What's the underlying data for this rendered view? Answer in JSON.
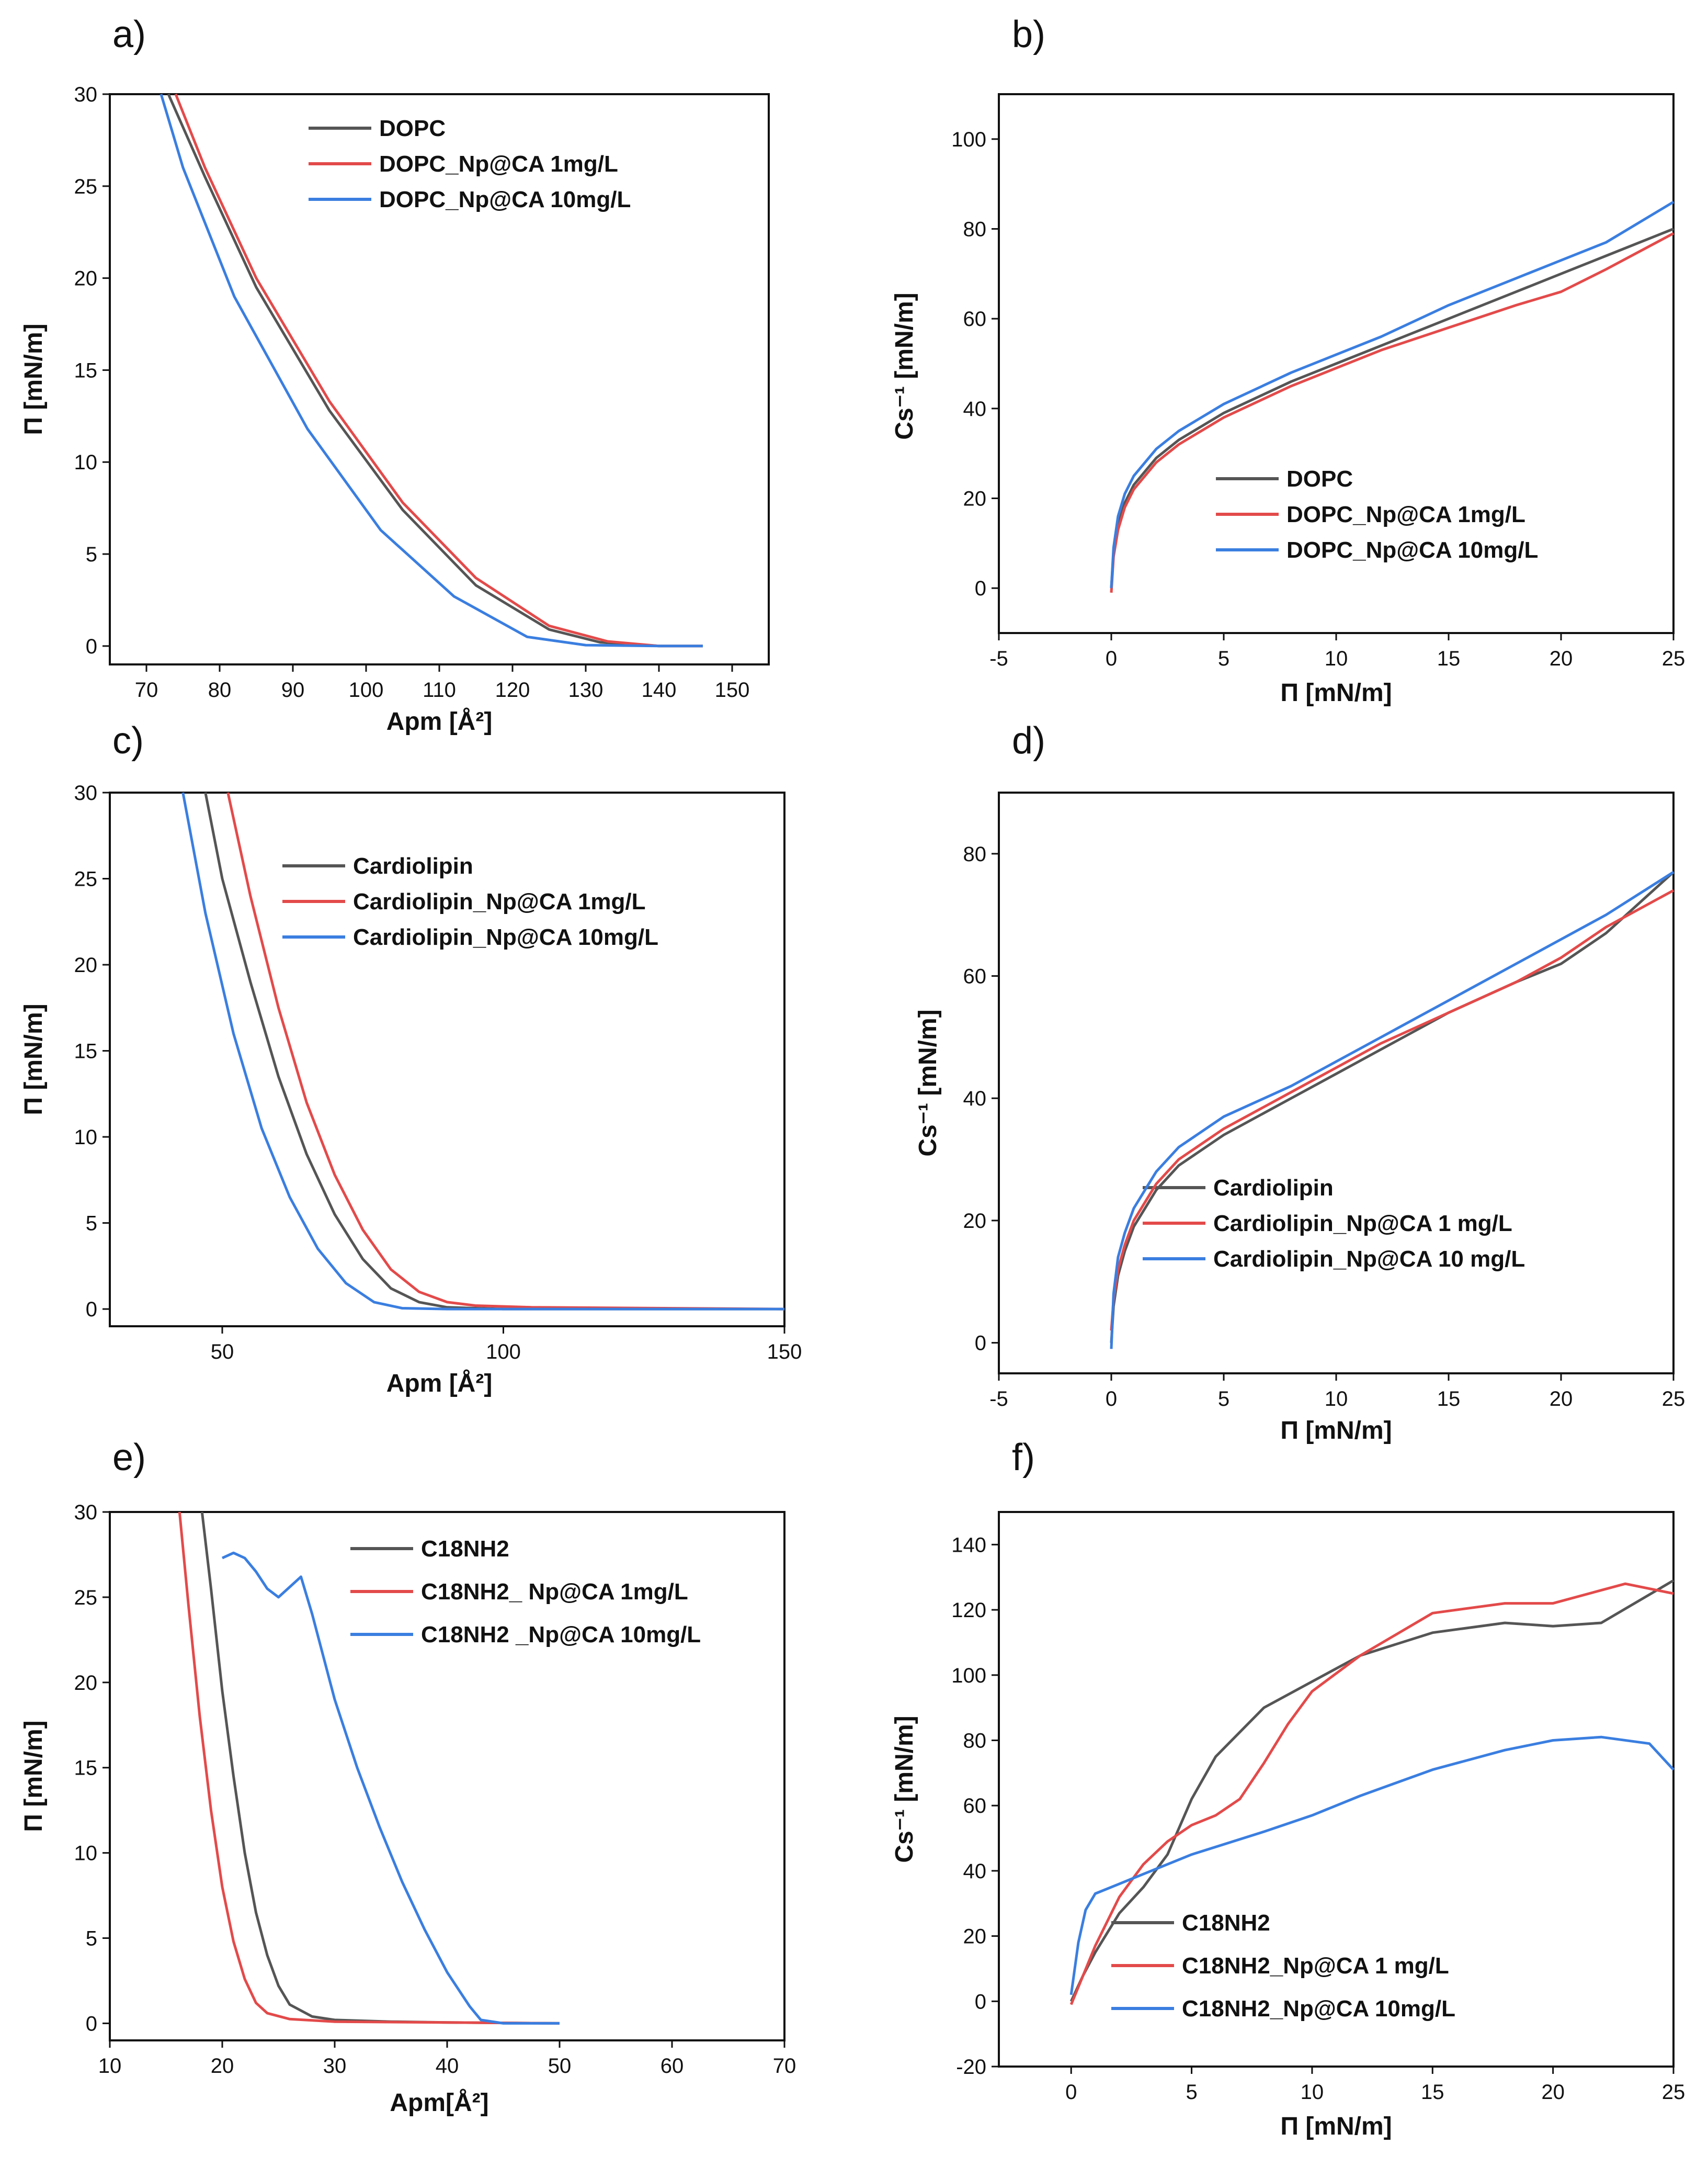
{
  "chart_data": [
    {
      "panel": "a)",
      "type": "line",
      "xlabel": "Apm [Å²]",
      "ylabel": "Π [mN/m]",
      "xlim": [
        65,
        155
      ],
      "ylim": [
        -1,
        30
      ],
      "xticks": [
        70,
        80,
        90,
        100,
        110,
        120,
        130,
        140,
        150
      ],
      "yticks": [
        0,
        5,
        10,
        15,
        20,
        25,
        30
      ],
      "legend_position": "top-center",
      "series": [
        {
          "name": "DOPC",
          "color": "#555555",
          "x": [
            73,
            78,
            85,
            95,
            105,
            115,
            125,
            132,
            140,
            146
          ],
          "y": [
            30,
            25.5,
            19.5,
            12.8,
            7.4,
            3.3,
            0.9,
            0.2,
            0.0,
            0.0
          ]
        },
        {
          "name": "DOPC_Np@CA 1mg/L",
          "color": "#e34a4a",
          "x": [
            74,
            78,
            85,
            95,
            105,
            115,
            125,
            133,
            140,
            146
          ],
          "y": [
            30,
            26.0,
            20.0,
            13.3,
            7.8,
            3.7,
            1.1,
            0.25,
            0.0,
            0.0
          ]
        },
        {
          "name": "DOPC_Np@CA 10mg/L",
          "color": "#3a7ee0",
          "x": [
            72,
            75,
            82,
            92,
            102,
            112,
            122,
            130,
            140,
            146
          ],
          "y": [
            30,
            26.0,
            19.0,
            11.8,
            6.3,
            2.7,
            0.5,
            0.05,
            0.0,
            0.0
          ]
        }
      ]
    },
    {
      "panel": "b)",
      "type": "line",
      "xlabel": "Π [mN/m]",
      "ylabel": "Cs⁻¹ [mN/m]",
      "xlim": [
        -5,
        25
      ],
      "ylim": [
        -10,
        110
      ],
      "xticks": [
        -5,
        0,
        5,
        10,
        15,
        20,
        25
      ],
      "yticks": [
        0,
        20,
        40,
        60,
        80,
        100
      ],
      "legend_position": "bottom-right",
      "series": [
        {
          "name": "DOPC",
          "color": "#555555",
          "x": [
            0,
            0.1,
            0.3,
            0.6,
            1,
            2,
            3,
            5,
            8,
            10,
            12,
            15,
            18,
            20,
            22,
            25
          ],
          "y": [
            0,
            8,
            14,
            19,
            23,
            29,
            33,
            39,
            46,
            50,
            54,
            60,
            66,
            70,
            74,
            80
          ]
        },
        {
          "name": "DOPC_Np@CA 1mg/L",
          "color": "#e34a4a",
          "x": [
            0,
            0.1,
            0.3,
            0.6,
            1,
            2,
            3,
            5,
            8,
            10,
            12,
            15,
            18,
            20,
            22,
            25
          ],
          "y": [
            -1,
            7,
            13,
            18,
            22,
            28,
            32,
            38,
            45,
            49,
            53,
            58,
            63,
            66,
            71,
            79
          ]
        },
        {
          "name": "DOPC_Np@CA 10mg/L",
          "color": "#3a7ee0",
          "x": [
            0,
            0.1,
            0.3,
            0.6,
            1,
            2,
            3,
            5,
            8,
            10,
            12,
            15,
            18,
            20,
            22,
            25
          ],
          "y": [
            0,
            9,
            16,
            21,
            25,
            31,
            35,
            41,
            48,
            52,
            56,
            63,
            69,
            73,
            77,
            86
          ]
        }
      ]
    },
    {
      "panel": "c)",
      "type": "line",
      "xlabel": "Apm [Å²]",
      "ylabel": "Π [mN/m]",
      "xlim": [
        30,
        150
      ],
      "ylim": [
        -1,
        30
      ],
      "xticks": [
        50,
        100,
        150
      ],
      "yticks": [
        0,
        5,
        10,
        15,
        20,
        25,
        30
      ],
      "legend_position": "top-center",
      "series": [
        {
          "name": "Cardiolipin",
          "color": "#555555",
          "x": [
            47,
            50,
            55,
            60,
            65,
            70,
            75,
            80,
            85,
            90,
            100,
            150
          ],
          "y": [
            30,
            25,
            19,
            13.5,
            9,
            5.5,
            2.9,
            1.2,
            0.4,
            0.1,
            0.0,
            0.0
          ]
        },
        {
          "name": "Cardiolipin_Np@CA 1mg/L",
          "color": "#e34a4a",
          "x": [
            51,
            55,
            60,
            65,
            70,
            75,
            80,
            85,
            90,
            95,
            105,
            150
          ],
          "y": [
            30,
            24,
            17.5,
            12,
            7.8,
            4.6,
            2.3,
            1.0,
            0.4,
            0.2,
            0.1,
            0.0
          ]
        },
        {
          "name": "Cardiolipin_Np@CA 10mg/L",
          "color": "#3a7ee0",
          "x": [
            43,
            47,
            52,
            57,
            62,
            67,
            72,
            77,
            82,
            90,
            150
          ],
          "y": [
            30,
            23,
            16,
            10.5,
            6.5,
            3.5,
            1.5,
            0.4,
            0.05,
            0.0,
            0.0
          ]
        }
      ]
    },
    {
      "panel": "d)",
      "type": "line",
      "xlabel": "Π [mN/m]",
      "ylabel": "Cs⁻¹ [mN/m]",
      "xlim": [
        -5,
        25
      ],
      "ylim": [
        -5,
        90
      ],
      "xticks": [
        -5,
        0,
        5,
        10,
        15,
        20,
        25
      ],
      "yticks": [
        0,
        20,
        40,
        60,
        80
      ],
      "legend_position": "bottom-right",
      "series": [
        {
          "name": "Cardiolipin",
          "color": "#555555",
          "x": [
            0,
            0.1,
            0.3,
            0.6,
            1,
            2,
            3,
            5,
            8,
            10,
            12,
            15,
            18,
            20,
            22,
            25
          ],
          "y": [
            0,
            6,
            11,
            15,
            19,
            25,
            29,
            34,
            40,
            44,
            48,
            54,
            59,
            62,
            67,
            77
          ]
        },
        {
          "name": "Cardiolipin_Np@CA 1 mg/L",
          "color": "#e34a4a",
          "x": [
            0,
            0.1,
            0.3,
            0.6,
            1,
            2,
            3,
            5,
            8,
            10,
            12,
            15,
            18,
            20,
            22,
            25
          ],
          "y": [
            2,
            7,
            12,
            16,
            20,
            26,
            30,
            35,
            41,
            45,
            49,
            54,
            59,
            63,
            68,
            74
          ]
        },
        {
          "name": "Cardiolipin_Np@CA 10 mg/L",
          "color": "#3a7ee0",
          "x": [
            0,
            0.1,
            0.3,
            0.6,
            1,
            2,
            3,
            5,
            8,
            10,
            12,
            15,
            18,
            20,
            22,
            25
          ],
          "y": [
            -1,
            8,
            14,
            18,
            22,
            28,
            32,
            37,
            42,
            46,
            50,
            56,
            62,
            66,
            70,
            77
          ]
        }
      ]
    },
    {
      "panel": "e)",
      "type": "line",
      "xlabel": "Apm[Å²]",
      "ylabel": "Π [mN/m]",
      "xlim": [
        10,
        70
      ],
      "ylim": [
        -1,
        30
      ],
      "xticks": [
        10,
        20,
        30,
        40,
        50,
        60,
        70
      ],
      "yticks": [
        0,
        5,
        10,
        15,
        20,
        25,
        30
      ],
      "legend_position": "top-center",
      "series": [
        {
          "name": "C18NH2",
          "color": "#555555",
          "x": [
            18.2,
            19,
            20,
            21,
            22,
            23,
            24,
            25,
            26,
            28,
            30,
            35,
            40,
            50
          ],
          "y": [
            30,
            25.5,
            19.5,
            14.5,
            10,
            6.5,
            4.0,
            2.2,
            1.1,
            0.4,
            0.2,
            0.1,
            0.05,
            0.0
          ]
        },
        {
          "name": "C18NH2_ Np@CA 1mg/L",
          "color": "#e34a4a",
          "x": [
            16.2,
            17,
            18,
            19,
            20,
            21,
            22,
            23,
            24,
            26,
            30,
            40,
            50
          ],
          "y": [
            30,
            24.5,
            18,
            12.5,
            8,
            4.8,
            2.6,
            1.2,
            0.6,
            0.25,
            0.1,
            0.05,
            0.0
          ]
        },
        {
          "name": "C18NH2 _Np@CA 10mg/L",
          "color": "#3a7ee0",
          "x": [
            20,
            21,
            22,
            23,
            24,
            25,
            26,
            27,
            28,
            30,
            32,
            34,
            36,
            38,
            40,
            42,
            43,
            45,
            50
          ],
          "y": [
            27.3,
            27.6,
            27.3,
            26.5,
            25.5,
            25.0,
            25.6,
            26.2,
            24.0,
            19.0,
            15.0,
            11.5,
            8.3,
            5.5,
            3.0,
            1.0,
            0.2,
            0.0,
            0.0
          ]
        }
      ]
    },
    {
      "panel": "f)",
      "type": "line",
      "xlabel": "Π [mN/m]",
      "ylabel": "Cs⁻¹ [mN/m]",
      "xlim": [
        -3,
        25
      ],
      "ylim": [
        -20,
        150
      ],
      "xticks": [
        0,
        5,
        10,
        15,
        20,
        25
      ],
      "yticks": [
        -20,
        0,
        20,
        40,
        60,
        80,
        100,
        120,
        140
      ],
      "legend_position": "bottom-center",
      "series": [
        {
          "name": "C18NH2",
          "color": "#555555",
          "x": [
            0,
            0.5,
            1,
            2,
            3,
            4,
            5,
            6,
            8,
            10,
            12,
            15,
            18,
            20,
            22,
            25
          ],
          "y": [
            0,
            8,
            15,
            27,
            35,
            45,
            62,
            75,
            90,
            98,
            106,
            113,
            116,
            115,
            116,
            129
          ]
        },
        {
          "name": "C18NH2_Np@CA 1 mg/L",
          "color": "#e34a4a",
          "x": [
            0,
            0.5,
            1,
            2,
            3,
            4,
            5,
            6,
            7,
            8,
            9,
            10,
            12,
            15,
            18,
            20,
            22,
            23,
            25
          ],
          "y": [
            -1,
            8,
            17,
            32,
            42,
            49,
            54,
            57,
            62,
            73,
            85,
            95,
            106,
            119,
            122,
            122,
            126,
            128,
            125
          ]
        },
        {
          "name": "C18NH2_Np@CA 10mg/L",
          "color": "#3a7ee0",
          "x": [
            0,
            0.3,
            0.6,
            1,
            2,
            3,
            5,
            8,
            10,
            12,
            15,
            18,
            20,
            22,
            24,
            25
          ],
          "y": [
            2,
            18,
            28,
            33,
            36,
            39,
            45,
            52,
            57,
            63,
            71,
            77,
            80,
            81,
            79,
            71
          ]
        }
      ]
    }
  ]
}
